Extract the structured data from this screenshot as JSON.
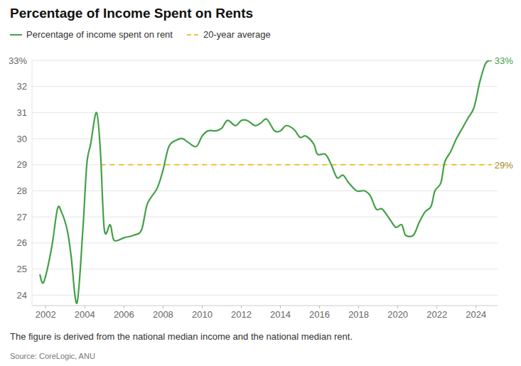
{
  "chart_data": {
    "type": "line",
    "title": "Percentage of Income Spent on Rents",
    "notes": "The figure is derived from the national median income and the national median rent.",
    "source": "Source: CoreLogic, ANU",
    "legend": "top-left",
    "grid": true,
    "x": [
      2001.7,
      2001.9,
      2002.3,
      2002.6,
      2002.8,
      2003.1,
      2003.3,
      2003.6,
      2003.9,
      2004.1,
      2004.3,
      2004.6,
      2004.8,
      2005.0,
      2005.3,
      2005.5,
      2006.0,
      2006.5,
      2006.9,
      2007.2,
      2007.7,
      2008.0,
      2008.3,
      2008.7,
      2009.0,
      2009.3,
      2009.7,
      2010.0,
      2010.3,
      2010.7,
      2011.0,
      2011.3,
      2011.7,
      2012.0,
      2012.3,
      2012.7,
      2013.0,
      2013.3,
      2013.7,
      2014.0,
      2014.3,
      2014.7,
      2015.0,
      2015.3,
      2015.7,
      2015.9,
      2016.3,
      2016.6,
      2016.9,
      2017.2,
      2017.5,
      2017.9,
      2018.3,
      2018.6,
      2018.9,
      2019.2,
      2019.6,
      2019.9,
      2020.2,
      2020.4,
      2020.8,
      2021.1,
      2021.4,
      2021.7,
      2021.9,
      2022.2,
      2022.4,
      2022.7,
      2023.0,
      2023.3,
      2023.6,
      2023.9,
      2024.2,
      2024.5,
      2024.8
    ],
    "series": [
      {
        "name": "Percentage of income spent on rent",
        "color": "#43a047",
        "line_style": "solid",
        "values": [
          24.8,
          24.5,
          25.8,
          27.3,
          27.2,
          26.5,
          25.5,
          23.7,
          26.5,
          29.0,
          29.8,
          31.0,
          29.5,
          26.5,
          26.7,
          26.1,
          26.2,
          26.3,
          26.5,
          27.5,
          28.1,
          28.8,
          29.7,
          29.95,
          30.0,
          29.85,
          29.7,
          30.1,
          30.3,
          30.3,
          30.4,
          30.7,
          30.5,
          30.7,
          30.7,
          30.5,
          30.6,
          30.75,
          30.3,
          30.3,
          30.5,
          30.35,
          30.05,
          30.1,
          29.8,
          29.4,
          29.4,
          29.0,
          28.5,
          28.6,
          28.3,
          28.0,
          28.0,
          27.8,
          27.3,
          27.3,
          26.9,
          26.6,
          26.7,
          26.3,
          26.3,
          26.8,
          27.2,
          27.4,
          28.0,
          28.3,
          29.1,
          29.5,
          30.0,
          30.4,
          30.8,
          31.2,
          32.2,
          32.9,
          33.0
        ]
      },
      {
        "name": "20-year average",
        "color": "#f2c12e",
        "line_style": "dashed",
        "values": [
          null,
          null,
          null,
          null,
          null,
          null,
          null,
          null,
          null,
          null,
          null,
          null,
          29,
          29,
          29,
          29,
          29,
          29,
          29,
          29,
          29,
          29,
          29,
          29,
          29,
          29,
          29,
          29,
          29,
          29,
          29,
          29,
          29,
          29,
          29,
          29,
          29,
          29,
          29,
          29,
          29,
          29,
          29,
          29,
          29,
          29,
          29,
          29,
          29,
          29,
          29,
          29,
          29,
          29,
          29,
          29,
          29,
          29,
          29,
          29,
          29,
          29,
          29,
          29,
          29,
          29,
          29,
          29,
          29,
          29,
          29,
          29,
          29,
          29,
          29
        ]
      }
    ],
    "annotations": [
      {
        "text": "33%",
        "x": 2024.8,
        "y": 33,
        "color": "#43a047"
      },
      {
        "text": "29%",
        "x": 2024.8,
        "y": 29,
        "color": "#a68a1c"
      }
    ],
    "xlim": [
      2001.3,
      2025.1
    ],
    "xticks": [
      2002,
      2004,
      2006,
      2008,
      2010,
      2012,
      2014,
      2016,
      2018,
      2020,
      2022,
      2024
    ],
    "ylim": [
      23.6,
      33
    ],
    "yticks": [
      24,
      25,
      26,
      27,
      28,
      29,
      30,
      31,
      32,
      {
        "value": 33,
        "label": "33%"
      }
    ]
  }
}
